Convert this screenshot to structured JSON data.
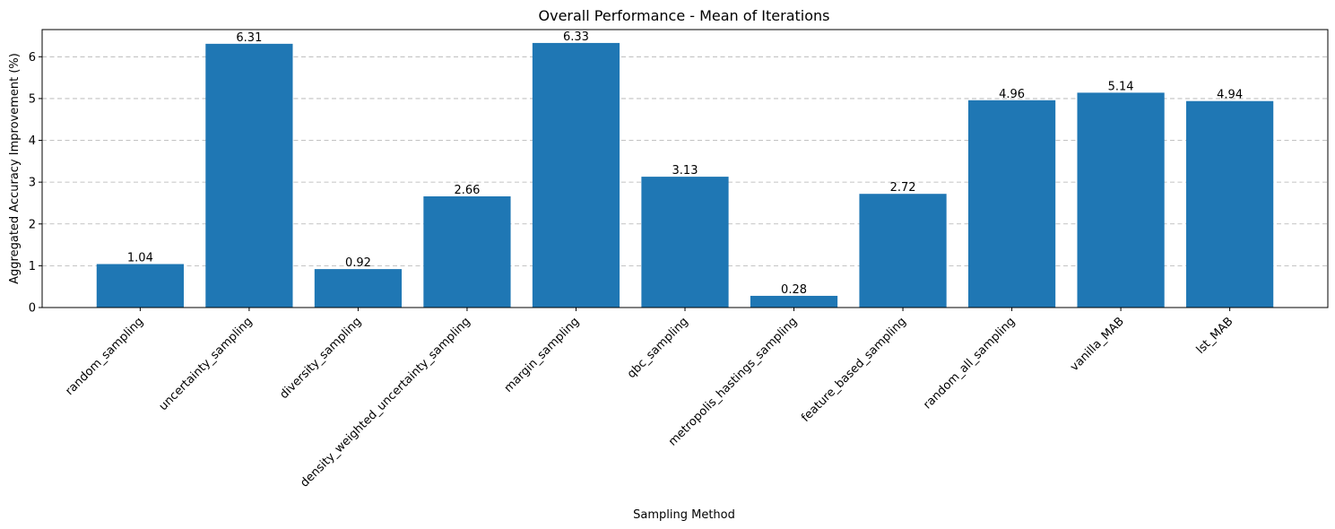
{
  "chart_data": {
    "type": "bar",
    "title": "Overall Performance - Mean of Iterations",
    "xlabel": "Sampling Method",
    "ylabel": "Aggregated Accuracy Improvement (%)",
    "categories": [
      "random_sampling",
      "uncertainty_sampling",
      "diversity_sampling",
      "density_weighted_uncertainty_sampling",
      "margin_sampling",
      "qbc_sampling",
      "metropolis_hastings_sampling",
      "feature_based_sampling",
      "random_all_sampling",
      "vanilla_MAB",
      "lst_MAB"
    ],
    "values": [
      1.04,
      6.31,
      0.92,
      2.66,
      6.33,
      3.13,
      0.28,
      2.72,
      4.96,
      5.14,
      4.94
    ],
    "data_labels": [
      "1.04",
      "6.31",
      "0.92",
      "2.66",
      "6.33",
      "3.13",
      "0.28",
      "2.72",
      "4.96",
      "5.14",
      "4.94"
    ],
    "y_ticks": [
      0,
      1,
      2,
      3,
      4,
      5,
      6
    ],
    "ylim": [
      0,
      6.65
    ],
    "grid": "y-axis dashed",
    "bar_color": "#1f77b4",
    "x_tick_rotation": "45 degrees"
  }
}
